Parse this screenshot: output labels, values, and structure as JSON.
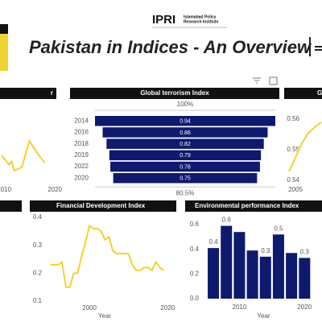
{
  "header": {
    "logo": "IPRI",
    "institute_line1": "Islamabad Policy",
    "institute_line2": "Research Institute",
    "title": "Pakistan in Indices - An Overview"
  },
  "chart_data": [
    {
      "type": "line",
      "title": "r",
      "x": [
        2009.5,
        2011,
        2011.5,
        2012,
        2013.5,
        2015,
        2016.5,
        2018
      ],
      "values": [
        0.4,
        0.29,
        0.33,
        0.22,
        0.26,
        0.57,
        0.43,
        0.31
      ],
      "color": "#f2d22e",
      "xlim": [
        2009.2,
        2020.3
      ],
      "ylim": [
        0,
        1
      ],
      "xticks": [
        2010,
        2020
      ]
    },
    {
      "type": "funnel",
      "title": "Global terrorism Index",
      "categories": [
        "2014",
        "2016",
        "2018",
        "2019",
        "2022",
        "2020"
      ],
      "values": [
        0.94,
        0.86,
        0.82,
        0.79,
        0.78,
        0.75
      ],
      "color": "#0d1a6e",
      "top_label": "100%",
      "bottom_label": "80.5%"
    },
    {
      "type": "line",
      "title": "G",
      "x": [
        2004,
        2005,
        2006,
        2007,
        2008,
        2009
      ],
      "values": [
        0.5429,
        0.5474,
        0.5521,
        0.5555,
        0.5574,
        0.559
      ],
      "color": "#f2d22e",
      "xlim": [
        2003.5,
        2009.125
      ],
      "ylim": [
        0.54,
        0.56
      ],
      "xticks": [
        2005
      ],
      "yticks": [
        0.54,
        0.55,
        0.56
      ]
    },
    {
      "type": "line",
      "title": "Financial Development Index",
      "x_label": "Year",
      "x": [
        1990,
        1991,
        1992,
        1993,
        1994,
        1995,
        1996,
        1997,
        1998,
        1999,
        2000,
        2001,
        2002,
        2003,
        2004,
        2005,
        2006,
        2007,
        2008,
        2009,
        2010,
        2011,
        2012,
        2013,
        2014,
        2015,
        2016,
        2017,
        2018,
        2019
      ],
      "values": [
        0.23,
        0.23,
        0.23,
        0.24,
        0.15,
        0.15,
        0.2,
        0.2,
        0.26,
        0.31,
        0.37,
        0.36,
        0.36,
        0.35,
        0.32,
        0.33,
        0.28,
        0.27,
        0.27,
        0.27,
        0.27,
        0.23,
        0.21,
        0.21,
        0.22,
        0.22,
        0.21,
        0.24,
        0.22,
        0.21
      ],
      "color": "#f2d22e",
      "xlim": [
        1986.4,
        2021.4
      ],
      "ylim": [
        0.1,
        0.4
      ],
      "xticks": [
        2000,
        2020
      ],
      "yticks": [
        0.1,
        0.2,
        0.3,
        0.4
      ]
    },
    {
      "type": "bar",
      "title": "Environmental performance Index",
      "x_label": "Year",
      "x": [
        2006,
        2008,
        2010,
        2012,
        2014,
        2016,
        2018,
        2020
      ],
      "values": [
        0.41,
        0.59,
        0.54,
        0.39,
        0.34,
        0.52,
        0.37,
        0.33
      ],
      "value_labels": [
        "0.4",
        "0.6",
        null,
        null,
        "0.3",
        "0.5",
        null,
        "0.3"
      ],
      "color": "#0d1a6e",
      "xlim": [
        2004.76,
        2022.68
      ],
      "ylim": [
        0,
        0.6
      ],
      "xticks": [
        2010,
        2020
      ],
      "yticks": [
        {
          "value": 0,
          "label": "0.0"
        },
        0.2,
        0.4,
        0.6
      ]
    }
  ]
}
